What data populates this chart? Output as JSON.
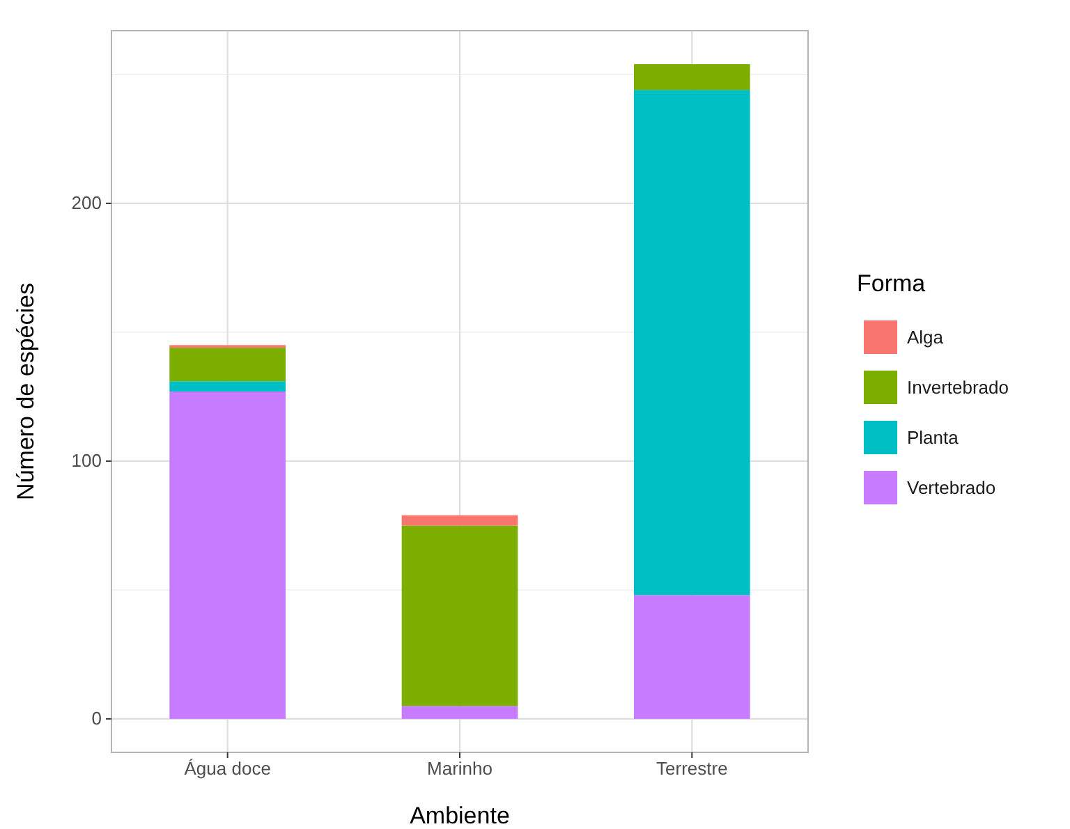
{
  "chart_data": {
    "type": "bar",
    "stacked": true,
    "xlabel": "Ambiente",
    "ylabel": "Número de espécies",
    "legend_title": "Forma",
    "legend": "right",
    "grid": true,
    "categories": [
      "Água doce",
      "Marinho",
      "Terrestre"
    ],
    "ylim": [
      -13,
      267
    ],
    "yticks": [
      0,
      {
        "value": 50,
        "label": null
      },
      100,
      {
        "value": 150,
        "label": null
      },
      200,
      {
        "value": 250,
        "label": null
      }
    ],
    "series": [
      {
        "name": "Vertebrado",
        "color": "#c77cff",
        "values": [
          127,
          5,
          48
        ]
      },
      {
        "name": "Planta",
        "color": "#00bfc4",
        "values": [
          4,
          0,
          196
        ]
      },
      {
        "name": "Invertebrado",
        "color": "#7cae00",
        "values": [
          13,
          70,
          10
        ]
      },
      {
        "name": "Alga",
        "color": "#f8766d",
        "values": [
          1,
          4,
          0
        ]
      }
    ]
  }
}
